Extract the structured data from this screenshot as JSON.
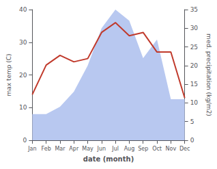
{
  "chart_data": {
    "type": "line",
    "categories": [
      "Jan",
      "Feb",
      "Mar",
      "Apr",
      "May",
      "Jun",
      "Jul",
      "Aug",
      "Sep",
      "Oct",
      "Nov",
      "Dec"
    ],
    "xlabel": "date (month)",
    "ylabel": "max temp (C)",
    "y2label": "med. precipitation (kg/m2)",
    "series": [
      {
        "type": "area",
        "axis": "y2",
        "color": "#b8c8f0",
        "values": [
          7,
          7,
          9,
          13,
          20,
          30,
          35,
          32,
          22,
          27,
          11,
          11
        ]
      },
      {
        "type": "line",
        "color": "#c0392b",
        "values": [
          14,
          23,
          26,
          24,
          25,
          33,
          36,
          32,
          33,
          27,
          27,
          13
        ]
      }
    ],
    "ylim": [
      0,
      40
    ],
    "yticks": [
      0,
      10,
      20,
      30,
      40
    ],
    "y2lim": [
      0,
      35
    ],
    "y2ticks": [
      0,
      5,
      10,
      15,
      20,
      25,
      30,
      35
    ],
    "grid": false
  }
}
